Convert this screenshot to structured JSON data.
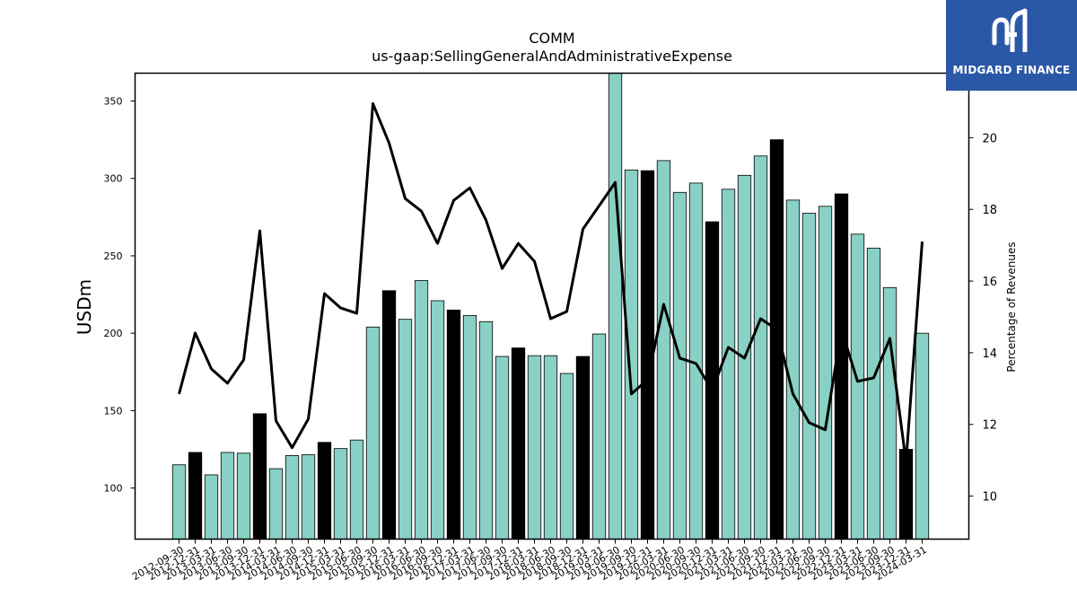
{
  "chart_data": {
    "type": "bar",
    "title": "COMM",
    "subtitle": "us-gaap:SellingGeneralAndAdministrativeExpense",
    "ylabel": "USDm",
    "y2label": "Percentage of Revenues",
    "ylim": [
      67,
      368
    ],
    "y2lim": [
      8.8,
      21.8
    ],
    "yticks": [
      100,
      150,
      200,
      250,
      300,
      350
    ],
    "y2ticks": [
      10,
      12,
      14,
      16,
      18,
      20
    ],
    "categories": [
      "2012-09-30",
      "2012-12-31",
      "2013-03-31",
      "2013-06-30",
      "2013-09-30",
      "2013-12-31",
      "2014-03-31",
      "2014-06-30",
      "2014-09-30",
      "2014-12-31",
      "2015-03-31",
      "2015-06-30",
      "2015-09-30",
      "2015-12-31",
      "2016-03-31",
      "2016-06-30",
      "2016-09-30",
      "2016-12-31",
      "2017-03-31",
      "2017-06-30",
      "2017-09-30",
      "2017-12-31",
      "2018-03-31",
      "2018-06-30",
      "2018-09-30",
      "2018-12-31",
      "2019-03-31",
      "2019-06-30",
      "2019-09-30",
      "2019-12-31",
      "2020-03-31",
      "2020-06-30",
      "2020-09-30",
      "2020-12-31",
      "2021-03-31",
      "2021-06-30",
      "2021-09-30",
      "2021-12-31",
      "2022-03-31",
      "2022-06-30",
      "2022-09-30",
      "2022-12-31",
      "2023-03-31",
      "2023-06-30",
      "2023-09-30",
      "2023-12-31",
      "2024-03-31"
    ],
    "xtick_labels": [
      "2012-09-30",
      "2012-12-31",
      "2013-03-31",
      "2013-06-30",
      "2013-09-30",
      "2013-12-31",
      "2014-03-31",
      "2014-06-30",
      "2014-09-30",
      "2014-12-31",
      "2015-03-31",
      "2015-06-30",
      "2015-09-30",
      "2015-12-31",
      "2016-03-31",
      "2016-06-30",
      "2016-09-30",
      "2016-12-31",
      "2017-03-31",
      "2017-06-30",
      "2017-09-30",
      "2017-12-31",
      "2018-03-31",
      "2018-06-30",
      "2018-09-30",
      "2018-12-31",
      "2019-03-31",
      "2019-06-30",
      "2019-09-30",
      "2019-12-31",
      "2020-03-31",
      "2020-06-30",
      "2020-09-30",
      "2020-12-31",
      "2021-03-31",
      "2021-06-30",
      "2021-09-30",
      "2021-12-31",
      "2022-03-31",
      "2022-06-30",
      "2022-09-30",
      "2022-12-31",
      "2023-03-31",
      "2023-06-30",
      "2023-09-30",
      "2023-12-31",
      "2024-03-31"
    ],
    "series": [
      {
        "kind": "bar",
        "values": [
          115,
          123,
          108.5,
          123,
          122.5,
          148,
          112.5,
          121,
          121.5,
          129.5,
          125.5,
          131,
          204,
          227.5,
          209,
          234,
          221,
          215,
          211.5,
          207.5,
          185,
          190.5,
          185.5,
          185.5,
          174,
          185,
          199.5,
          368,
          305.5,
          305,
          311.5,
          291,
          297,
          272,
          293,
          302,
          314.5,
          325,
          286,
          277.5,
          282,
          290,
          264,
          255,
          229.5,
          125,
          200
        ],
        "highlight": [
          false,
          true,
          false,
          false,
          false,
          true,
          false,
          false,
          false,
          true,
          false,
          false,
          false,
          true,
          false,
          false,
          false,
          true,
          false,
          false,
          false,
          true,
          false,
          false,
          false,
          true,
          false,
          false,
          false,
          true,
          false,
          false,
          false,
          true,
          false,
          false,
          false,
          true,
          false,
          false,
          false,
          true,
          false,
          false,
          false,
          true,
          false
        ]
      },
      {
        "kind": "line",
        "axis": "right",
        "values": [
          12.85,
          14.55,
          13.55,
          13.15,
          13.8,
          17.4,
          12.1,
          11.35,
          12.15,
          15.65,
          15.25,
          15.1,
          20.95,
          19.85,
          18.3,
          17.95,
          17.05,
          18.25,
          18.6,
          17.7,
          16.35,
          17.05,
          16.55,
          14.95,
          15.15,
          17.45,
          18.1,
          18.75,
          12.85,
          13.25,
          15.35,
          13.85,
          13.7,
          12.95,
          14.15,
          13.85,
          14.95,
          14.65,
          12.85,
          12.05,
          11.85,
          14.65,
          13.2,
          13.3,
          14.4,
          10.95,
          17.1
        ]
      }
    ],
    "colors": {
      "bar": "#88d1c4",
      "bar_highlight": "#000000",
      "line": "#000000"
    },
    "grid": false,
    "legend": "none"
  },
  "logo": {
    "text": "MIDGARD FINANCE",
    "background": "#2b58a6"
  }
}
